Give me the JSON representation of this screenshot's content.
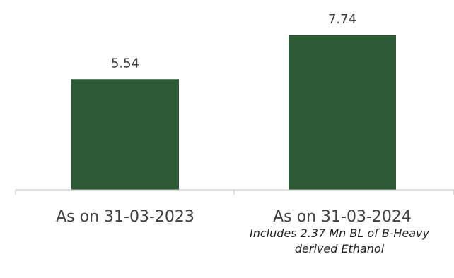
{
  "chart_data": {
    "type": "bar",
    "categories": [
      "As on 31-03-2023",
      "As on 31-03-2024"
    ],
    "values": [
      5.54,
      7.74
    ],
    "value_labels": [
      "5.54",
      "7.74"
    ],
    "title": "",
    "xlabel": "",
    "ylabel": "",
    "ylim": [
      0,
      8.2
    ],
    "grid": false,
    "legend": "none",
    "bar_color": "#2b5a34",
    "annotations": [
      "Includes 2.37 Mn BL of B-Heavy derived Ethanol"
    ]
  }
}
